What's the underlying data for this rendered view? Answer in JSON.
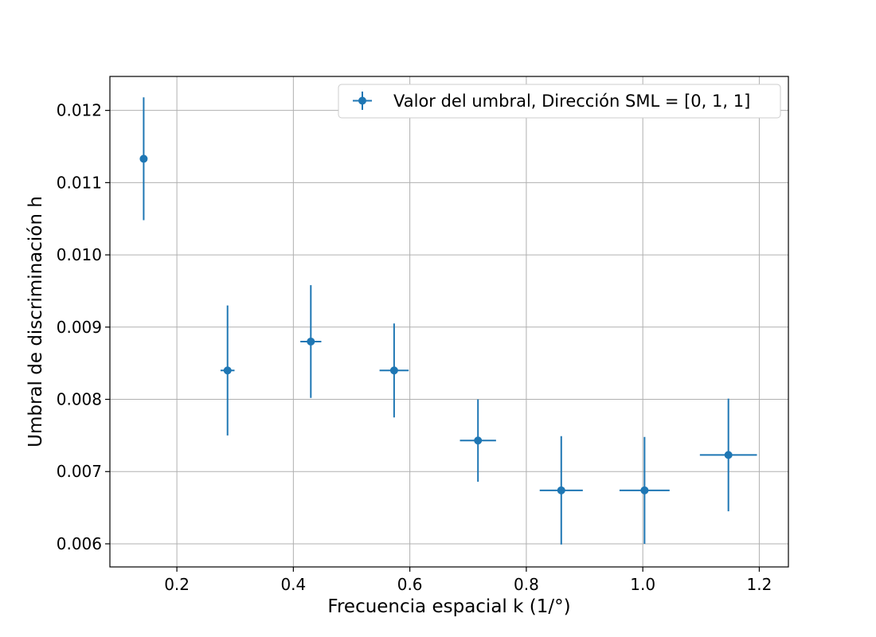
{
  "chart_data": {
    "type": "scatter",
    "title": "",
    "xlabel": "Frecuencia espacial k (1/°)",
    "ylabel": "Umbral de discriminación h",
    "xlim": [
      0.085,
      1.25
    ],
    "ylim": [
      0.00568,
      0.01247
    ],
    "xticks": [
      0.2,
      0.4,
      0.6,
      0.8,
      1.0,
      1.2
    ],
    "xtick_labels": [
      "0.2",
      "0.4",
      "0.6",
      "0.8",
      "1.0",
      "1.2"
    ],
    "yticks": [
      0.006,
      0.007,
      0.008,
      0.009,
      0.01,
      0.011,
      0.012
    ],
    "ytick_labels": [
      "0.006",
      "0.007",
      "0.008",
      "0.009",
      "0.010",
      "0.011",
      "0.012"
    ],
    "grid": true,
    "legend_position": "top-right",
    "series": [
      {
        "name": "Valor del umbral, Dirección SML = [0, 1, 1]",
        "color": "#1f77b4",
        "marker": "circle",
        "x": [
          0.143,
          0.287,
          0.43,
          0.573,
          0.717,
          0.86,
          1.003,
          1.147
        ],
        "y": [
          0.01133,
          0.0084,
          0.0088,
          0.0084,
          0.00743,
          0.00674,
          0.00674,
          0.00723
        ],
        "xerr": [
          0.0,
          0.012,
          0.018,
          0.025,
          0.031,
          0.037,
          0.043,
          0.049
        ],
        "yerr": [
          0.00085,
          0.0009,
          0.00078,
          0.00065,
          0.00057,
          0.00075,
          0.00074,
          0.00078
        ]
      }
    ]
  }
}
